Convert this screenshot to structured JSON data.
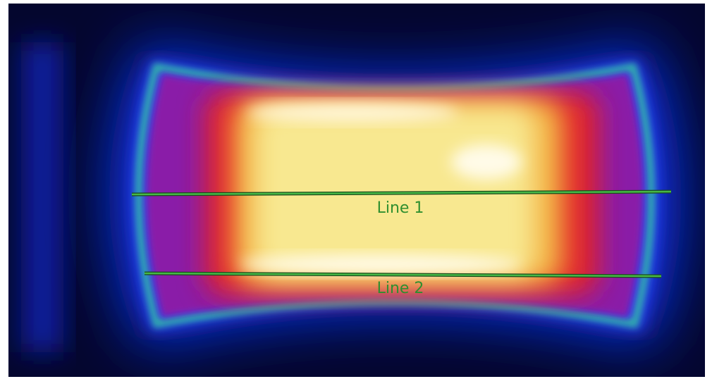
{
  "annotations": [
    {
      "label": "Line 1"
    },
    {
      "label": "Line 2"
    }
  ]
}
